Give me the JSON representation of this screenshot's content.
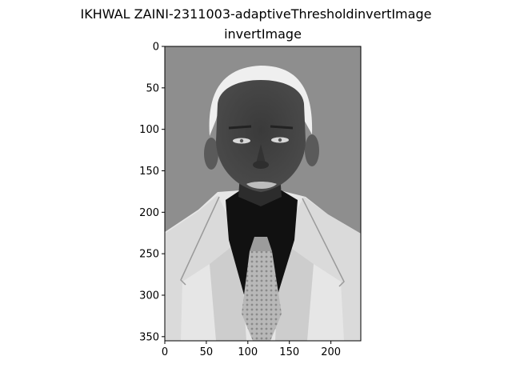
{
  "figure": {
    "suptitle": "IKHWAL ZAINI-2311003-adaptiveThresholdinvertImage",
    "axes_title": "invertImage"
  },
  "chart_data": {
    "type": "heatmap",
    "title": "invertImage",
    "xlabel": "",
    "ylabel": "",
    "xlim": [
      0,
      236
    ],
    "ylim": [
      355,
      0
    ],
    "xticks": [
      0,
      50,
      100,
      150,
      200
    ],
    "yticks": [
      0,
      50,
      100,
      150,
      200,
      250,
      300,
      350
    ],
    "grid": false,
    "colormap": "gray"
  },
  "colors": {
    "background": "#8e8e8e",
    "suit": "#e8e8e8",
    "suit_shadow": "#bdbdbd",
    "shirt": "#0f0f0f",
    "tie": "#b5b5b5",
    "skin": "#3b3b3b",
    "hair": "#f0f0f0"
  }
}
